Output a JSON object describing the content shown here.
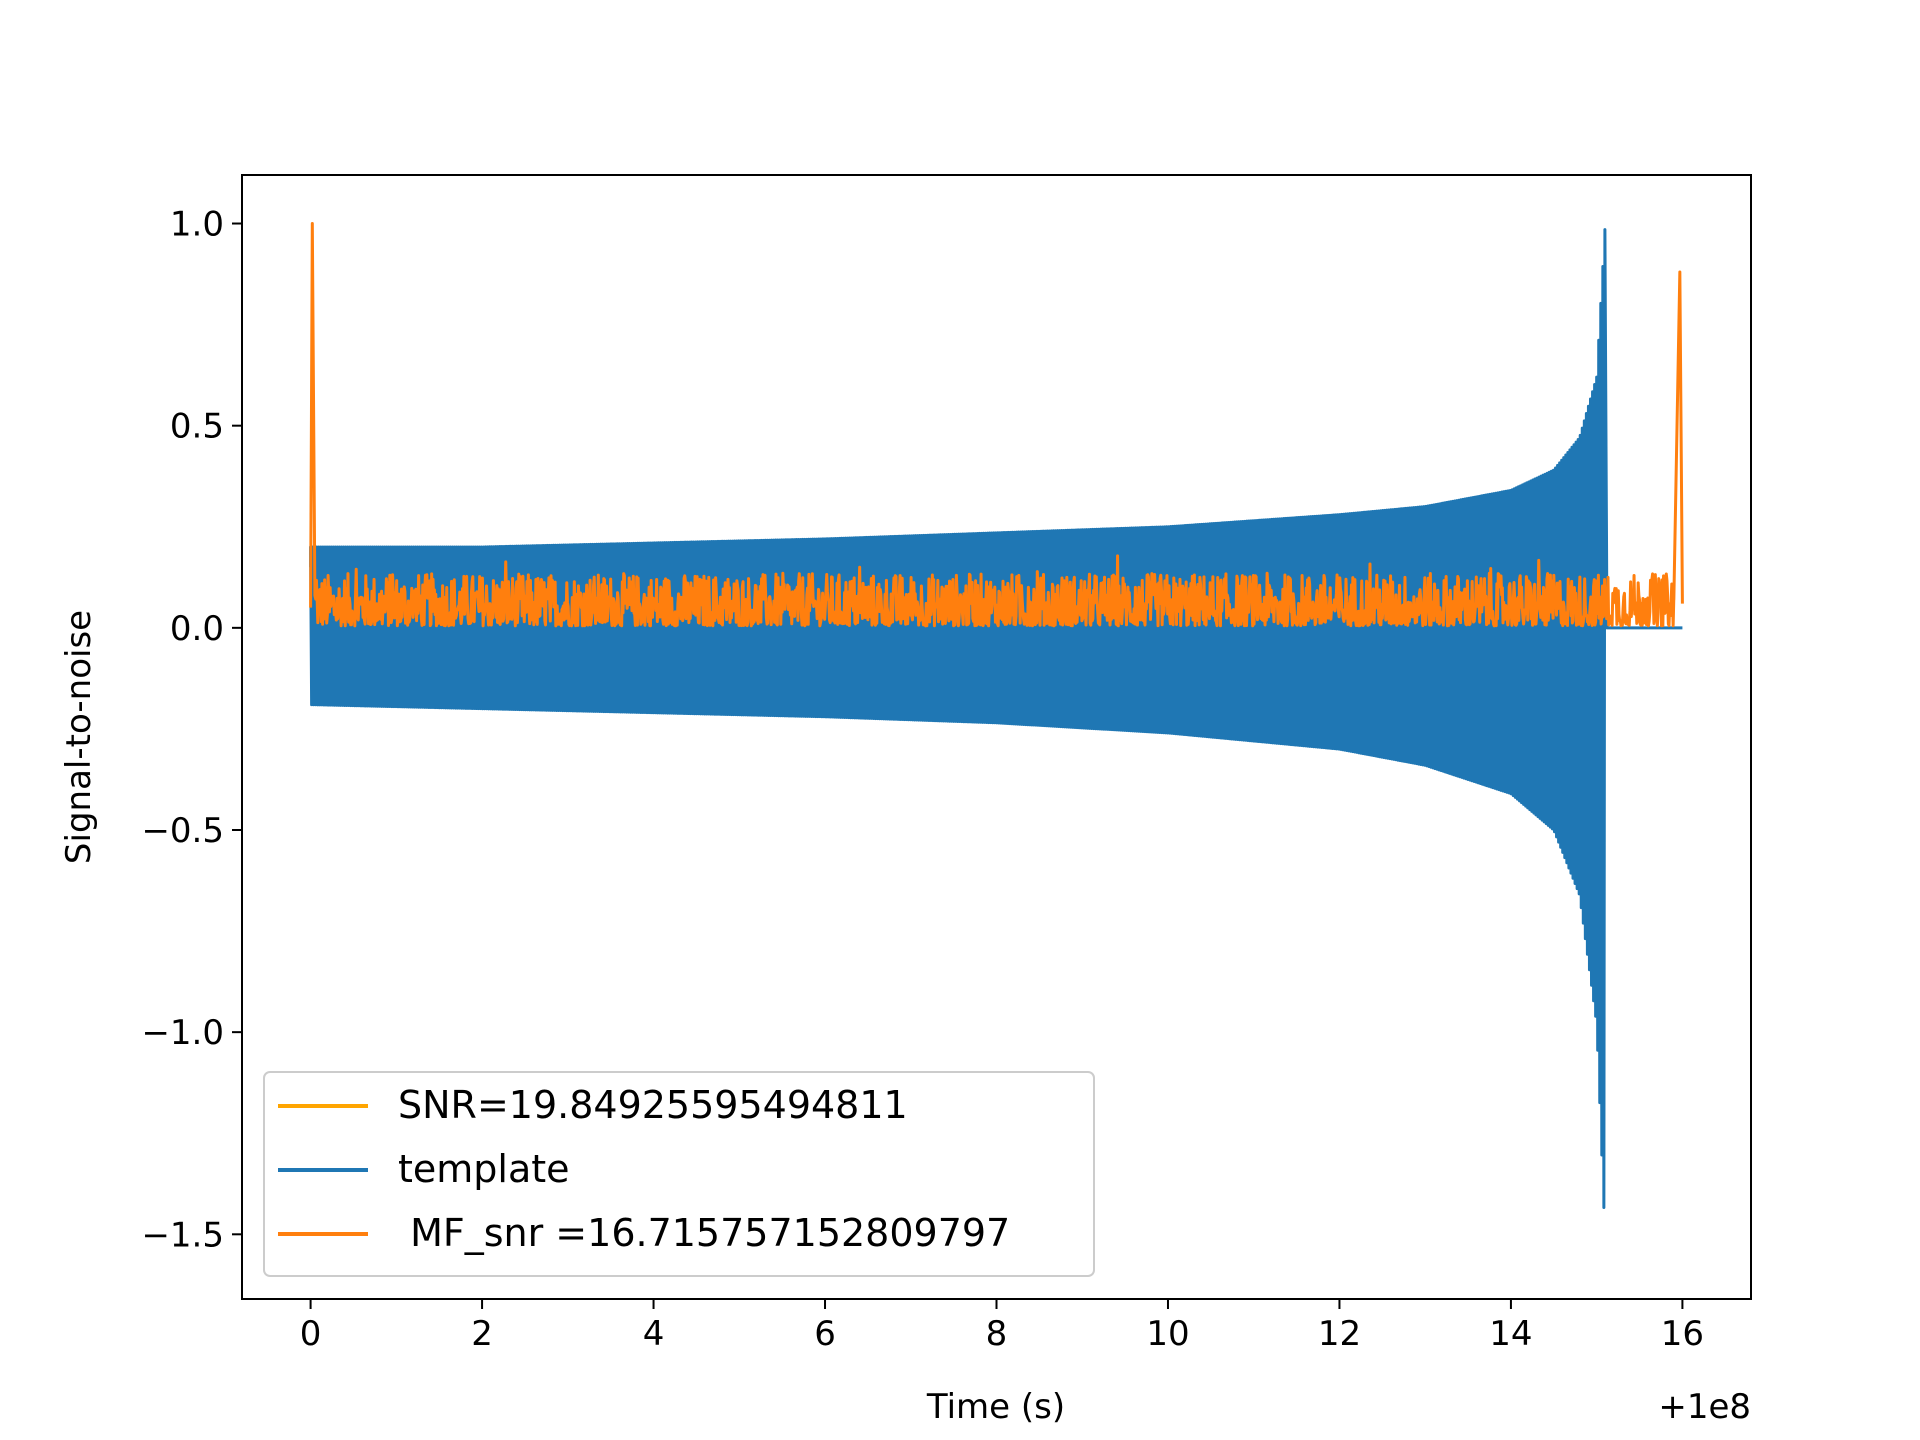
{
  "chart_data": {
    "type": "line",
    "xlabel": "Time (s)",
    "ylabel": "Signal-to-noise",
    "x_offset_label": "+1e8",
    "xlim": [
      -0.8,
      16.8
    ],
    "ylim": [
      -1.66,
      1.12
    ],
    "x_ticks": [
      0,
      2,
      4,
      6,
      8,
      10,
      12,
      14,
      16
    ],
    "x_tick_labels": [
      "0",
      "2",
      "4",
      "6",
      "8",
      "10",
      "12",
      "14",
      "16"
    ],
    "y_ticks": [
      1.0,
      0.5,
      0.0,
      -0.5,
      -1.0,
      -1.5
    ],
    "y_tick_labels": [
      "1.0",
      "0.5",
      "0.0",
      "−0.5",
      "−1.0",
      "−1.5"
    ],
    "grid": false,
    "legend_position": "lower-left",
    "series": [
      {
        "name": "SNR=19.84925595494811",
        "color": "#ffa500",
        "style": "line",
        "x": [],
        "y": []
      },
      {
        "name": "template",
        "color": "#1f77b4",
        "style": "chirp-envelope",
        "x": [
          0.0,
          2.0,
          4.0,
          6.0,
          8.0,
          10.0,
          12.0,
          13.0,
          14.0,
          14.5,
          14.8,
          15.0,
          15.1,
          15.15,
          16.0
        ],
        "upper": [
          0.2,
          0.2,
          0.21,
          0.22,
          0.235,
          0.25,
          0.28,
          0.3,
          0.34,
          0.39,
          0.47,
          0.62,
          1.0,
          0.0,
          0.0
        ],
        "lower": [
          -0.19,
          -0.2,
          -0.21,
          -0.22,
          -0.235,
          -0.26,
          -0.3,
          -0.34,
          -0.41,
          -0.5,
          -0.66,
          -0.98,
          -1.52,
          0.0,
          0.0
        ]
      },
      {
        "name": " MF_snr =16.715757152809797",
        "color": "#ff7f0e",
        "style": "line",
        "x": [
          0.0,
          0.02,
          0.05,
          2.0,
          4.0,
          6.0,
          8.0,
          10.0,
          12.0,
          14.0,
          15.0,
          15.9,
          15.97,
          16.0
        ],
        "y": [
          0.05,
          1.0,
          0.08,
          0.07,
          0.07,
          0.07,
          0.07,
          0.07,
          0.07,
          0.07,
          0.07,
          0.07,
          0.88,
          0.06
        ]
      }
    ]
  }
}
